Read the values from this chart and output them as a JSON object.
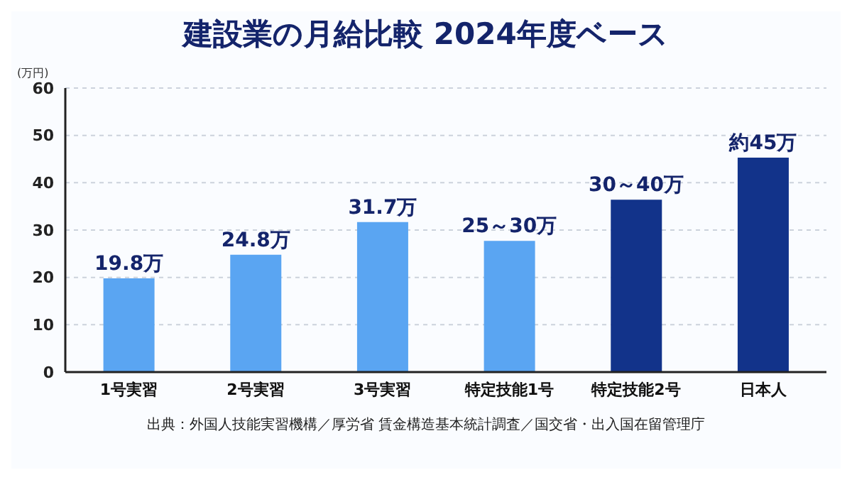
{
  "chart_data": {
    "type": "bar",
    "title": "建設業の月給比較 2024年度ベース",
    "ylabel": "(万円)",
    "categories": [
      "1号実習",
      "2号実習",
      "3号実習",
      "特定技能1号",
      "特定技能2号",
      "日本人"
    ],
    "values": [
      19.8,
      24.8,
      31.7,
      27.7,
      36.4,
      45.3
    ],
    "colors": [
      "#5aa5f2",
      "#5aa5f2",
      "#5aa5f2",
      "#5aa5f2",
      "#12338a",
      "#12338a"
    ],
    "value_labels": [
      "19.8万",
      "24.8万",
      "31.7万",
      null,
      null,
      "約45万"
    ],
    "ylim": [
      0,
      60
    ],
    "yticks": [
      0,
      10,
      20,
      30,
      40,
      50,
      60
    ],
    "grid": "y",
    "legend": false,
    "annotations": [
      {
        "text": "25～30万",
        "x": "特定技能1号",
        "y": 27.7
      },
      {
        "text": "30～40万",
        "x": "特定技能2号",
        "y": 36.4
      },
      "出典：外国人技能実習機構／厚労省 賃金構造基本統計調査／国交省・出入国在留管理庁"
    ]
  }
}
